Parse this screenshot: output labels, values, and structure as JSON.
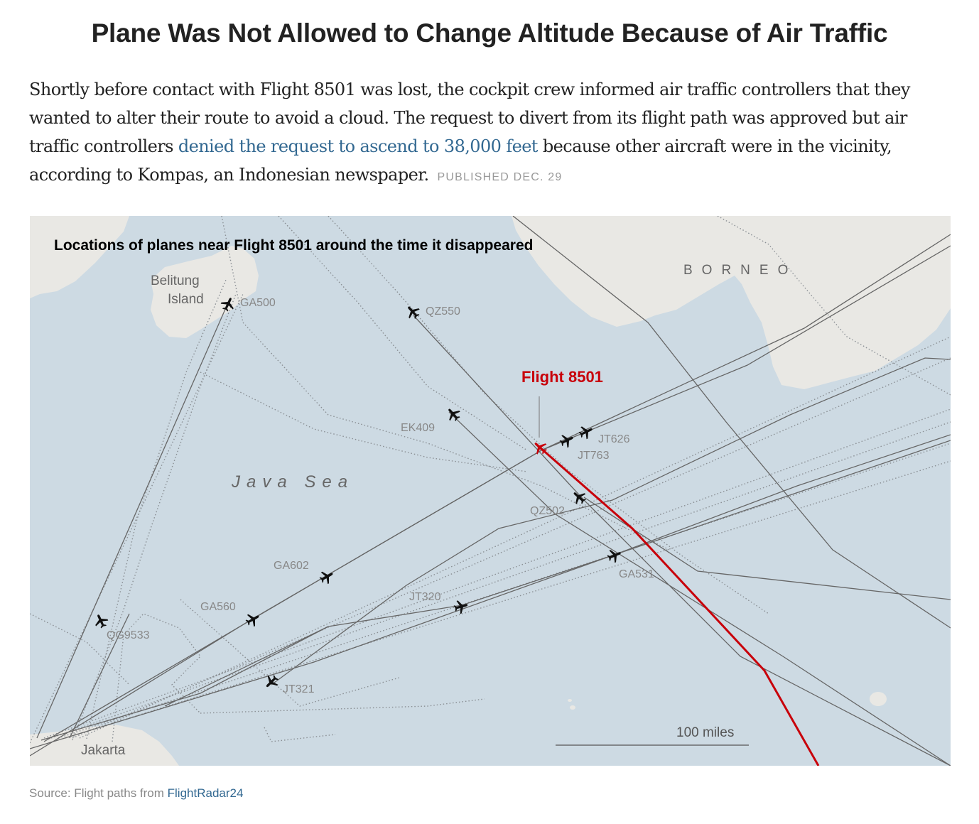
{
  "headline": "Plane Was Not Allowed to Change Altitude Because of Air Traffic",
  "lede": {
    "text_before": "Shortly before contact with Flight 8501 was lost, the cockpit crew informed air traffic controllers that they wanted to alter their route to avoid a cloud. The request to divert from its flight path was approved but air traffic controllers ",
    "link_text": "denied the request to ascend to 38,000 feet",
    "text_after": " because other aircraft were in the vicinity, according to Kompas, an Indonesian newspaper.",
    "published": "PUBLISHED DEC. 29"
  },
  "map": {
    "title": "Locations of planes near Flight 8501 around the time it disappeared",
    "colors": {
      "sea": "#cddae3",
      "land": "#e9e8e4",
      "route": "#666666",
      "highlight": "#c8000a"
    },
    "places": {
      "belitung_line1": "Belitung",
      "belitung_line2": "Island",
      "borneo": "BORNEO",
      "java_sea": "Java Sea",
      "jakarta": "Jakarta"
    },
    "highlight_flight": "Flight 8501",
    "flights": {
      "ga500": "GA500",
      "qz550": "QZ550",
      "ek409": "EK409",
      "jt626": "JT626",
      "jt763": "JT763",
      "qz502": "QZ502",
      "ga531": "GA531",
      "ga602": "GA602",
      "jt320": "JT320",
      "ga560": "GA560",
      "qg9533": "QG9533",
      "jt321": "JT321"
    },
    "scale_label": "100 miles",
    "icon": "plane-icon"
  },
  "source": {
    "prefix": "Source: Flight paths from ",
    "link": "FlightRadar24"
  }
}
